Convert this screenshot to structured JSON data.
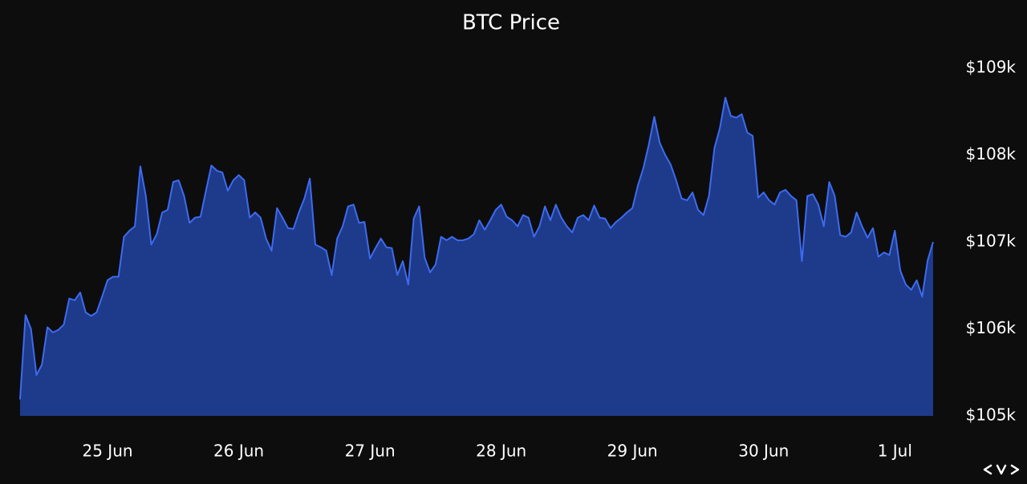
{
  "chart_data": {
    "type": "area",
    "title": "BTC Price",
    "categories": [
      null,
      null,
      null,
      null,
      null,
      null,
      null,
      null,
      null,
      null,
      null,
      null,
      null,
      null,
      null,
      null,
      "25 Jun",
      null,
      null,
      null,
      null,
      null,
      null,
      null,
      null,
      null,
      null,
      null,
      null,
      null,
      null,
      null,
      null,
      null,
      null,
      null,
      null,
      null,
      null,
      null,
      "26 Jun",
      null,
      null,
      null,
      null,
      null,
      null,
      null,
      null,
      null,
      null,
      null,
      null,
      null,
      null,
      null,
      null,
      null,
      null,
      null,
      null,
      null,
      null,
      null,
      "27 Jun",
      null,
      null,
      null,
      null,
      null,
      null,
      null,
      null,
      null,
      null,
      null,
      null,
      null,
      null,
      null,
      null,
      null,
      null,
      null,
      null,
      null,
      null,
      null,
      "28 Jun",
      null,
      null,
      null,
      null,
      null,
      null,
      null,
      null,
      null,
      null,
      null,
      null,
      null,
      null,
      null,
      null,
      null,
      null,
      null,
      null,
      null,
      null,
      null,
      "29 Jun",
      null,
      null,
      null,
      null,
      null,
      null,
      null,
      null,
      null,
      null,
      null,
      null,
      null,
      null,
      null,
      null,
      null,
      null,
      null,
      null,
      null,
      null,
      null,
      "30 Jun",
      null,
      null,
      null,
      null,
      null,
      null,
      null,
      null,
      null,
      null,
      null,
      null,
      null,
      null,
      null,
      null,
      null,
      null,
      null,
      null,
      null,
      null,
      null,
      "1 Jul",
      null,
      null,
      null,
      null,
      null,
      null,
      null
    ],
    "values": [
      105.19,
      106.16,
      106.0,
      105.47,
      105.59,
      106.02,
      105.96,
      105.99,
      106.05,
      106.35,
      106.33,
      106.42,
      106.19,
      106.15,
      106.19,
      106.37,
      106.56,
      106.6,
      106.6,
      107.06,
      107.13,
      107.18,
      107.87,
      107.53,
      106.97,
      107.09,
      107.34,
      107.37,
      107.69,
      107.71,
      107.53,
      107.22,
      107.28,
      107.29,
      107.59,
      107.88,
      107.82,
      107.8,
      107.59,
      107.71,
      107.77,
      107.71,
      107.28,
      107.34,
      107.28,
      107.04,
      106.9,
      107.39,
      107.28,
      107.16,
      107.15,
      107.34,
      107.5,
      107.73,
      106.97,
      106.94,
      106.9,
      106.62,
      107.04,
      107.18,
      107.41,
      107.43,
      107.22,
      107.23,
      106.81,
      106.93,
      107.04,
      106.94,
      106.93,
      106.62,
      106.78,
      106.51,
      107.27,
      107.41,
      106.82,
      106.65,
      106.74,
      107.06,
      107.02,
      107.06,
      107.02,
      107.02,
      107.04,
      107.09,
      107.25,
      107.14,
      107.25,
      107.37,
      107.43,
      107.29,
      107.25,
      107.18,
      107.31,
      107.28,
      107.06,
      107.18,
      107.41,
      107.25,
      107.43,
      107.28,
      107.18,
      107.11,
      107.28,
      107.31,
      107.25,
      107.42,
      107.28,
      107.27,
      107.16,
      107.23,
      107.28,
      107.34,
      107.39,
      107.65,
      107.85,
      108.12,
      108.44,
      108.14,
      108.0,
      107.89,
      107.71,
      107.5,
      107.48,
      107.57,
      107.37,
      107.31,
      107.53,
      108.08,
      108.31,
      108.66,
      108.45,
      108.43,
      108.47,
      108.26,
      108.22,
      107.51,
      107.57,
      107.48,
      107.43,
      107.57,
      107.6,
      107.53,
      107.48,
      106.78,
      107.53,
      107.55,
      107.43,
      107.18,
      107.69,
      107.53,
      107.08,
      107.06,
      107.11,
      107.34,
      107.18,
      107.05,
      107.16,
      106.83,
      106.88,
      106.85,
      107.13,
      106.67,
      106.51,
      106.45,
      106.56,
      106.37,
      106.79,
      107.0
    ],
    "color": "#3d6bf0",
    "fill_color": "#1e3a8a",
    "ylim": [
      105,
      109
    ],
    "yticks": [
      {
        "value": 105,
        "label": "$105k"
      },
      {
        "value": 106,
        "label": "$106k"
      },
      {
        "value": 107,
        "label": "$107k"
      },
      {
        "value": 108,
        "label": "$108k"
      },
      {
        "value": 109,
        "label": "$109k"
      }
    ],
    "grid": false
  }
}
